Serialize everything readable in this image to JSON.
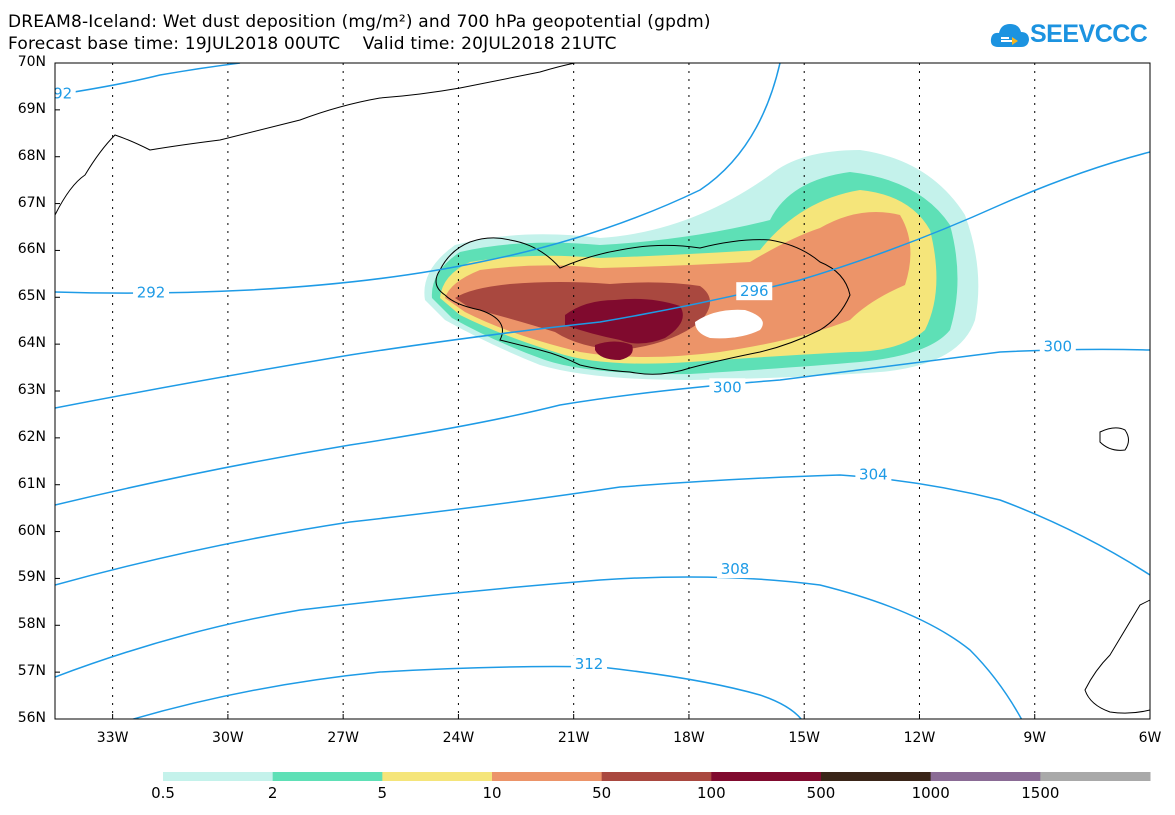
{
  "header": {
    "title_line1": "DREAM8-Iceland: Wet dust deposition (mg/m²) and 700 hPa geopotential (gpdm)",
    "title_line2": "Forecast base time: 19JUL2018 00UTC    Valid time: 20JUL2018 21UTC"
  },
  "brand": {
    "name": "SEEVCCC",
    "logo_icon": "cloud-logo-icon",
    "color": "#1c93e0"
  },
  "map": {
    "lon_range": [
      -34.5,
      -6
    ],
    "lat_range": [
      56,
      70
    ],
    "lat_labels": [
      "70N",
      "69N",
      "68N",
      "67N",
      "66N",
      "65N",
      "64N",
      "63N",
      "62N",
      "61N",
      "60N",
      "59N",
      "58N",
      "57N",
      "56N"
    ],
    "lon_labels": [
      "33W",
      "30W",
      "27W",
      "24W",
      "21W",
      "18W",
      "15W",
      "12W",
      "9W",
      "6W"
    ],
    "contour_color": "#1e9be6",
    "contour_labels": [
      {
        "text": "92",
        "lon": -34.3,
        "lat": 69.35
      },
      {
        "text": "292",
        "lon": -32.0,
        "lat": 65.1
      },
      {
        "text": "296",
        "lon": -16.3,
        "lat": 65.13
      },
      {
        "text": "300",
        "lon": -17.0,
        "lat": 63.08
      },
      {
        "text": "300",
        "lon": -8.4,
        "lat": 63.95
      },
      {
        "text": "304",
        "lon": -13.2,
        "lat": 61.22
      },
      {
        "text": "308",
        "lon": -16.8,
        "lat": 59.2
      },
      {
        "text": "312",
        "lon": -20.6,
        "lat": 57.17
      }
    ]
  },
  "legend": {
    "colors": [
      "#c4f2eb",
      "#5ee0b6",
      "#f5e57a",
      "#ec9469",
      "#a9483f",
      "#800a2e",
      "#3a2518",
      "#8a6b95",
      "#a9a9a9"
    ],
    "labels": [
      "0.5",
      "2",
      "5",
      "10",
      "50",
      "100",
      "500",
      "1000",
      "1500"
    ]
  }
}
